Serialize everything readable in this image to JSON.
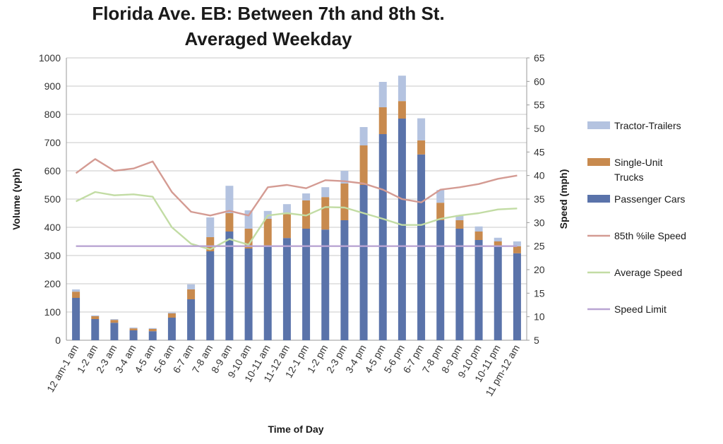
{
  "chart_data": {
    "type": "bar",
    "stacked": true,
    "title_line1": "Florida Ave. EB: Between 7th and 8th St.",
    "title_line2": "Averaged Weekday",
    "xlabel": "Time of Day",
    "ylabel": "Volume (vph)",
    "y2label": "Speed (mph)",
    "ylim": [
      0,
      1000
    ],
    "y2lim": [
      5,
      65
    ],
    "yticks": [
      "0",
      "100",
      "200",
      "300",
      "400",
      "500",
      "600",
      "700",
      "800",
      "900",
      "1000"
    ],
    "y2ticks": [
      "5",
      "10",
      "15",
      "20",
      "25",
      "30",
      "35",
      "40",
      "45",
      "50",
      "55",
      "60",
      "65"
    ],
    "grid": "horizontal",
    "legend_position": "right",
    "categories": [
      "12 am-1 am",
      "1-2 am",
      "2-3 am",
      "3-4 am",
      "4-5 am",
      "5-6 am",
      "6-7 am",
      "7-8 am",
      "8-9 am",
      "9-10 am",
      "10-11 am",
      "11-12 am",
      "12-1 pm",
      "1-2 pm",
      "2-3 pm",
      "3-4 pm",
      "4-5 pm",
      "5-6 pm",
      "6-7 pm",
      "7-8 pm",
      "8-9 pm",
      "9-10 pm",
      "10-11 pm",
      "11 pm-12 am"
    ],
    "bar_series": [
      {
        "name": "Passenger Cars",
        "color": "#5a73aa",
        "values": [
          150,
          75,
          62,
          35,
          32,
          80,
          145,
          315,
          385,
          325,
          335,
          362,
          395,
          392,
          425,
          550,
          730,
          785,
          658,
          425,
          395,
          355,
          335,
          308
        ]
      },
      {
        "name": "Single-Unit Trucks",
        "color": "#c88a4e",
        "values": [
          22,
          10,
          10,
          7,
          8,
          15,
          35,
          50,
          65,
          70,
          95,
          85,
          100,
          115,
          130,
          140,
          95,
          62,
          50,
          62,
          30,
          30,
          15,
          25
        ]
      },
      {
        "name": "Tractor-Trailers",
        "color": "#b4c3e0",
        "values": [
          8,
          3,
          3,
          3,
          3,
          3,
          18,
          70,
          97,
          65,
          28,
          35,
          25,
          35,
          45,
          65,
          90,
          90,
          78,
          45,
          18,
          18,
          13,
          17
        ]
      }
    ],
    "line_series": [
      {
        "name": "85th %ile Speed",
        "color": "#d49b93",
        "axis": "right",
        "values": [
          40.5,
          43.5,
          41,
          41.5,
          43,
          36.5,
          32.3,
          31.5,
          32.5,
          31.5,
          37.5,
          38,
          37.3,
          39,
          38.8,
          38.3,
          37,
          35,
          34.3,
          37,
          37.5,
          38.2,
          39.3,
          40
        ]
      },
      {
        "name": "Average Speed",
        "color": "#c2dca4",
        "axis": "right",
        "values": [
          34.5,
          36.5,
          35.8,
          36,
          35.5,
          29,
          25.5,
          24.3,
          26.5,
          25.3,
          31.5,
          32,
          31.5,
          33.3,
          33.2,
          32,
          30.8,
          29.5,
          29.5,
          30.8,
          31.5,
          32,
          32.8,
          33
        ]
      },
      {
        "name": "Speed Limit",
        "color": "#b9a5d3",
        "axis": "right",
        "values": [
          25,
          25,
          25,
          25,
          25,
          25,
          25,
          25,
          25,
          25,
          25,
          25,
          25,
          25,
          25,
          25,
          25,
          25,
          25,
          25,
          25,
          25,
          25,
          25
        ]
      }
    ],
    "legend": [
      {
        "kind": "bar",
        "series": "Tractor-Trailers",
        "lines": [
          "Tractor-Trailers"
        ],
        "color": "#b4c3e0"
      },
      {
        "kind": "bar",
        "series": "Single-Unit Trucks",
        "lines": [
          "Single-Unit",
          "Trucks"
        ],
        "color": "#c88a4e"
      },
      {
        "kind": "bar",
        "series": "Passenger Cars",
        "lines": [
          "Passenger Cars"
        ],
        "color": "#5a73aa"
      },
      {
        "kind": "line",
        "series": "85th %ile Speed",
        "lines": [
          "85th %ile Speed"
        ],
        "color": "#d49b93"
      },
      {
        "kind": "line",
        "series": "Average Speed",
        "lines": [
          "Average Speed"
        ],
        "color": "#c2dca4"
      },
      {
        "kind": "line",
        "series": "Speed Limit",
        "lines": [
          "Speed Limit"
        ],
        "color": "#b9a5d3"
      }
    ]
  }
}
